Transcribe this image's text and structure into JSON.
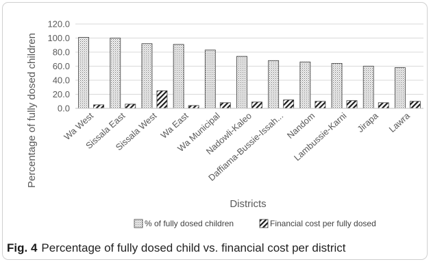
{
  "figure": {
    "label": "Fig. 4",
    "caption": "Percentage of fully dosed child vs. financial cost per district"
  },
  "chart_data": {
    "type": "bar",
    "categories": [
      "Wa West",
      "Sissala East",
      "Sissala West",
      "Wa East",
      "Wa Municipal",
      "Nadowli-Kaleo",
      "Daffiama-Bussie-Issah...",
      "Nandom",
      "Lambussie-Karni",
      "Jirapa",
      "Lawra"
    ],
    "series": [
      {
        "name": "% of fully dosed children",
        "pattern": "dotted",
        "values": [
          101,
          100,
          92,
          91,
          83,
          74,
          68,
          66,
          64,
          60,
          58
        ]
      },
      {
        "name": "Financial cost per fully dosed",
        "pattern": "diagonal-hatch",
        "values": [
          5,
          6,
          25,
          4,
          8,
          9,
          12,
          10,
          11,
          8,
          10
        ]
      }
    ],
    "xlabel": "Districts",
    "ylabel": "Percentage of fully dosed children",
    "ylim": [
      0,
      120
    ],
    "yticks": [
      "0.0",
      "20.0",
      "40.0",
      "60.0",
      "80.0",
      "100.0",
      "120.0"
    ],
    "grid": true,
    "legend_position": "bottom"
  }
}
